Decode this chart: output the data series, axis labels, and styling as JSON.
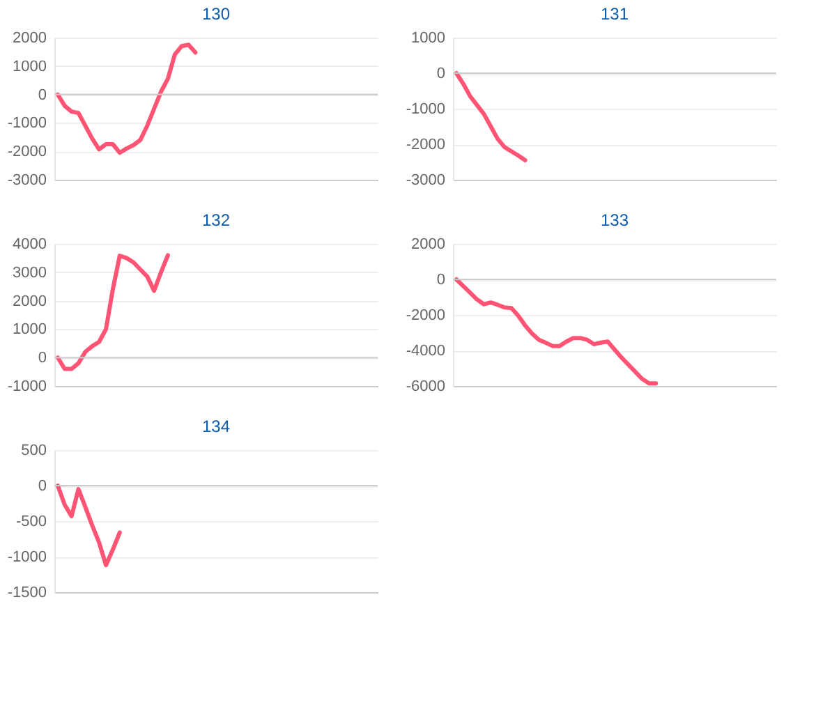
{
  "chart_data": [
    {
      "type": "line",
      "title": "130",
      "categories": [
        null,
        null,
        null,
        null,
        null,
        null,
        null,
        null,
        null,
        null,
        null,
        null,
        null,
        null,
        null,
        null,
        null,
        null,
        null,
        null,
        null,
        null,
        null,
        null,
        null,
        null,
        null,
        null,
        null,
        null,
        null,
        null,
        null,
        null,
        null,
        null,
        null,
        null,
        null,
        null,
        null,
        null,
        null,
        null,
        null,
        null,
        null
      ],
      "series": [
        {
          "color": "#ff5473",
          "values": [
            0,
            -400,
            -600,
            -650,
            -1100,
            -1550,
            -1930,
            -1750,
            -1750,
            -2050,
            -1900,
            -1780,
            -1600,
            -1100,
            -500,
            100,
            550,
            1400,
            1700,
            1750,
            1480,
            null,
            null,
            null,
            null,
            null,
            null,
            null,
            null,
            null,
            null,
            null,
            null,
            null,
            null,
            null,
            null,
            null,
            null,
            null,
            null,
            null,
            null,
            null,
            null,
            null,
            null
          ]
        }
      ],
      "ylim": [
        -3000,
        2000
      ],
      "yticks": [
        -3000,
        -2000,
        -1000,
        0,
        1000,
        2000
      ],
      "grid": "y",
      "tick_labels": "y",
      "ref_lines": [
        {
          "axis": "y",
          "value": 0,
          "color": "#cccccc"
        }
      ]
    },
    {
      "type": "line",
      "title": "131",
      "categories": [
        null,
        null,
        null,
        null,
        null,
        null,
        null,
        null,
        null,
        null,
        null,
        null,
        null,
        null,
        null,
        null,
        null,
        null,
        null,
        null,
        null,
        null,
        null,
        null,
        null,
        null,
        null,
        null,
        null,
        null,
        null,
        null,
        null,
        null,
        null,
        null,
        null,
        null,
        null,
        null,
        null,
        null,
        null,
        null,
        null,
        null,
        null
      ],
      "series": [
        {
          "color": "#ff5473",
          "values": [
            0,
            -300,
            -650,
            -900,
            -1150,
            -1500,
            -1850,
            -2080,
            -2200,
            -2320,
            -2450,
            null,
            null,
            null,
            null,
            null,
            null,
            null,
            null,
            null,
            null,
            null,
            null,
            null,
            null,
            null,
            null,
            null,
            null,
            null,
            null,
            null,
            null,
            null,
            null,
            null,
            null,
            null,
            null,
            null,
            null,
            null,
            null,
            null,
            null,
            null,
            null
          ]
        }
      ],
      "ylim": [
        -3000,
        1000
      ],
      "yticks": [
        -3000,
        -2000,
        -1000,
        0,
        1000
      ],
      "grid": "y",
      "tick_labels": "y",
      "ref_lines": [
        {
          "axis": "y",
          "value": 0,
          "color": "#cccccc"
        }
      ]
    },
    {
      "type": "line",
      "title": "132",
      "categories": [
        null,
        null,
        null,
        null,
        null,
        null,
        null,
        null,
        null,
        null,
        null,
        null,
        null,
        null,
        null,
        null,
        null,
        null,
        null,
        null,
        null,
        null,
        null,
        null,
        null,
        null,
        null,
        null,
        null,
        null,
        null,
        null,
        null,
        null,
        null,
        null,
        null,
        null,
        null,
        null,
        null,
        null,
        null,
        null,
        null,
        null,
        null
      ],
      "series": [
        {
          "color": "#ff5473",
          "values": [
            0,
            -400,
            -400,
            -200,
            200,
            400,
            550,
            1000,
            2400,
            3580,
            3500,
            3350,
            3100,
            2850,
            2350,
            3000,
            3600,
            null,
            null,
            null,
            null,
            null,
            null,
            null,
            null,
            null,
            null,
            null,
            null,
            null,
            null,
            null,
            null,
            null,
            null,
            null,
            null,
            null,
            null,
            null,
            null,
            null,
            null,
            null,
            null,
            null,
            null
          ]
        }
      ],
      "ylim": [
        -1000,
        4000
      ],
      "yticks": [
        -1000,
        0,
        1000,
        2000,
        3000,
        4000
      ],
      "grid": "y",
      "tick_labels": "y",
      "ref_lines": [
        {
          "axis": "y",
          "value": 0,
          "color": "#cccccc"
        }
      ]
    },
    {
      "type": "line",
      "title": "133",
      "categories": [
        null,
        null,
        null,
        null,
        null,
        null,
        null,
        null,
        null,
        null,
        null,
        null,
        null,
        null,
        null,
        null,
        null,
        null,
        null,
        null,
        null,
        null,
        null,
        null,
        null,
        null,
        null,
        null,
        null,
        null,
        null,
        null,
        null,
        null,
        null,
        null,
        null,
        null,
        null,
        null,
        null,
        null,
        null,
        null,
        null,
        null,
        null
      ],
      "series": [
        {
          "color": "#ff5473",
          "values": [
            0,
            -380,
            -750,
            -1130,
            -1400,
            -1300,
            -1430,
            -1580,
            -1620,
            -2050,
            -2600,
            -3050,
            -3400,
            -3570,
            -3750,
            -3750,
            -3500,
            -3300,
            -3300,
            -3400,
            -3650,
            -3560,
            -3500,
            -3950,
            -4400,
            -4800,
            -5200,
            -5600,
            -5850,
            -5850,
            null,
            null,
            null,
            null,
            null,
            null,
            null,
            null,
            null,
            null,
            null,
            null,
            null,
            null,
            null,
            null,
            null
          ]
        }
      ],
      "ylim": [
        -6000,
        2000
      ],
      "yticks": [
        -6000,
        -4000,
        -2000,
        0,
        2000
      ],
      "grid": "y",
      "tick_labels": "y",
      "ref_lines": [
        {
          "axis": "y",
          "value": 0,
          "color": "#cccccc"
        }
      ]
    },
    {
      "type": "line",
      "title": "134",
      "categories": [
        null,
        null,
        null,
        null,
        null,
        null,
        null,
        null,
        null,
        null,
        null,
        null,
        null,
        null,
        null,
        null,
        null,
        null,
        null,
        null,
        null,
        null,
        null,
        null,
        null,
        null,
        null,
        null,
        null,
        null,
        null,
        null,
        null,
        null,
        null,
        null,
        null,
        null,
        null,
        null,
        null,
        null,
        null,
        null,
        null,
        null,
        null
      ],
      "series": [
        {
          "color": "#ff5473",
          "values": [
            0,
            -270,
            -430,
            -50,
            -300,
            -560,
            -800,
            -1120,
            -900,
            -660,
            null,
            null,
            null,
            null,
            null,
            null,
            null,
            null,
            null,
            null,
            null,
            null,
            null,
            null,
            null,
            null,
            null,
            null,
            null,
            null,
            null,
            null,
            null,
            null,
            null,
            null,
            null,
            null,
            null,
            null,
            null,
            null,
            null,
            null,
            null,
            null,
            null
          ]
        }
      ],
      "ylim": [
        -1500,
        500
      ],
      "yticks": [
        -1500,
        -1000,
        -500,
        0,
        500
      ],
      "grid": "y",
      "tick_labels": "y",
      "ref_lines": [
        {
          "axis": "y",
          "value": 0,
          "color": "#cccccc"
        }
      ]
    }
  ]
}
